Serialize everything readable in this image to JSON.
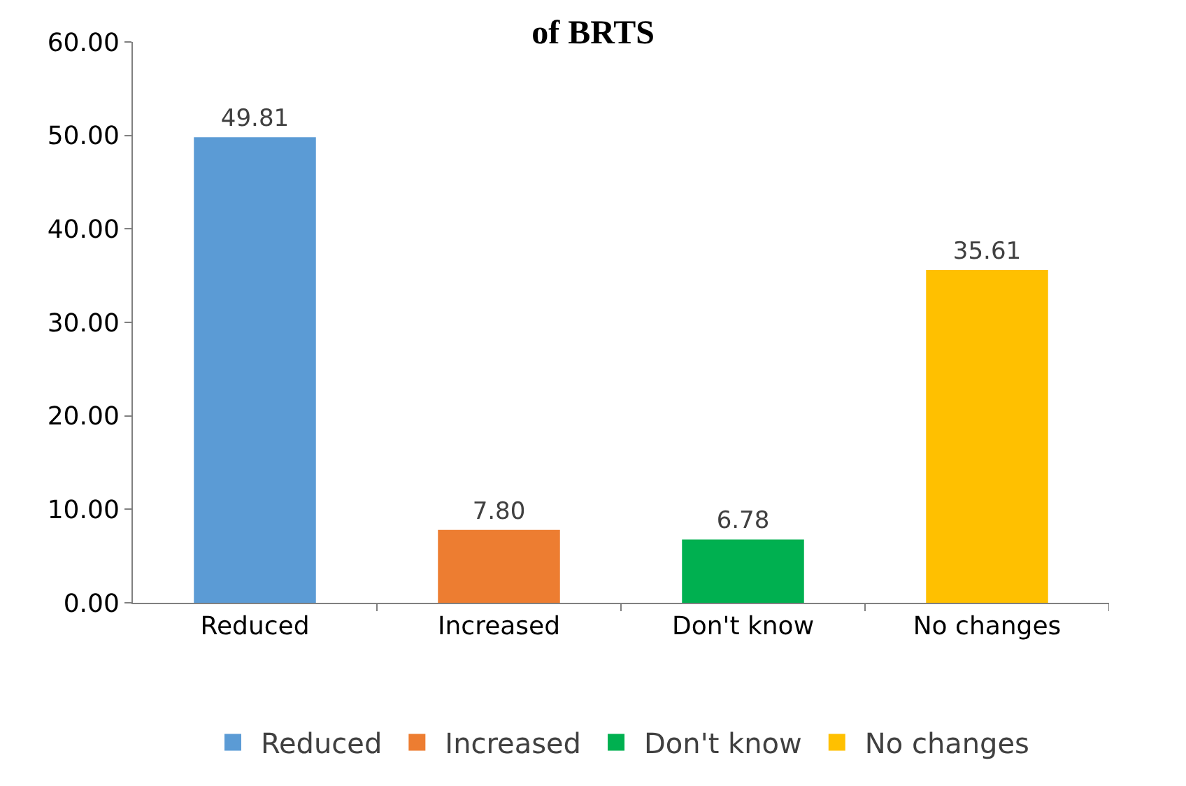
{
  "chart_data": {
    "type": "bar",
    "title": "of BRTS",
    "categories": [
      "Reduced",
      "Increased",
      "Don't know",
      "No changes"
    ],
    "series": [
      {
        "name": "Reduced",
        "color": "#5b9bd5",
        "values": [
          49.81,
          null,
          null,
          null
        ],
        "value_labels": [
          "49.81",
          null,
          null,
          null
        ]
      },
      {
        "name": "Increased",
        "color": "#ed7d31",
        "values": [
          null,
          7.8,
          null,
          null
        ],
        "value_labels": [
          null,
          "7.80",
          null,
          null
        ]
      },
      {
        "name": "Don't know",
        "color": "#00b050",
        "values": [
          null,
          null,
          6.78,
          null
        ],
        "value_labels": [
          null,
          null,
          "6.78",
          null
        ]
      },
      {
        "name": "No changes",
        "color": "#ffc000",
        "values": [
          null,
          null,
          null,
          35.61
        ],
        "value_labels": [
          null,
          null,
          null,
          "35.61"
        ]
      }
    ],
    "ylim": [
      0,
      60
    ],
    "yticks": [
      {
        "value": 0,
        "label": "0.00"
      },
      {
        "value": 10,
        "label": "10.00"
      },
      {
        "value": 20,
        "label": "20.00"
      },
      {
        "value": 30,
        "label": "30.00"
      },
      {
        "value": 40,
        "label": "40.00"
      },
      {
        "value": 50,
        "label": "50.00"
      },
      {
        "value": 60,
        "label": "60.00"
      }
    ],
    "legend": "bottom"
  }
}
